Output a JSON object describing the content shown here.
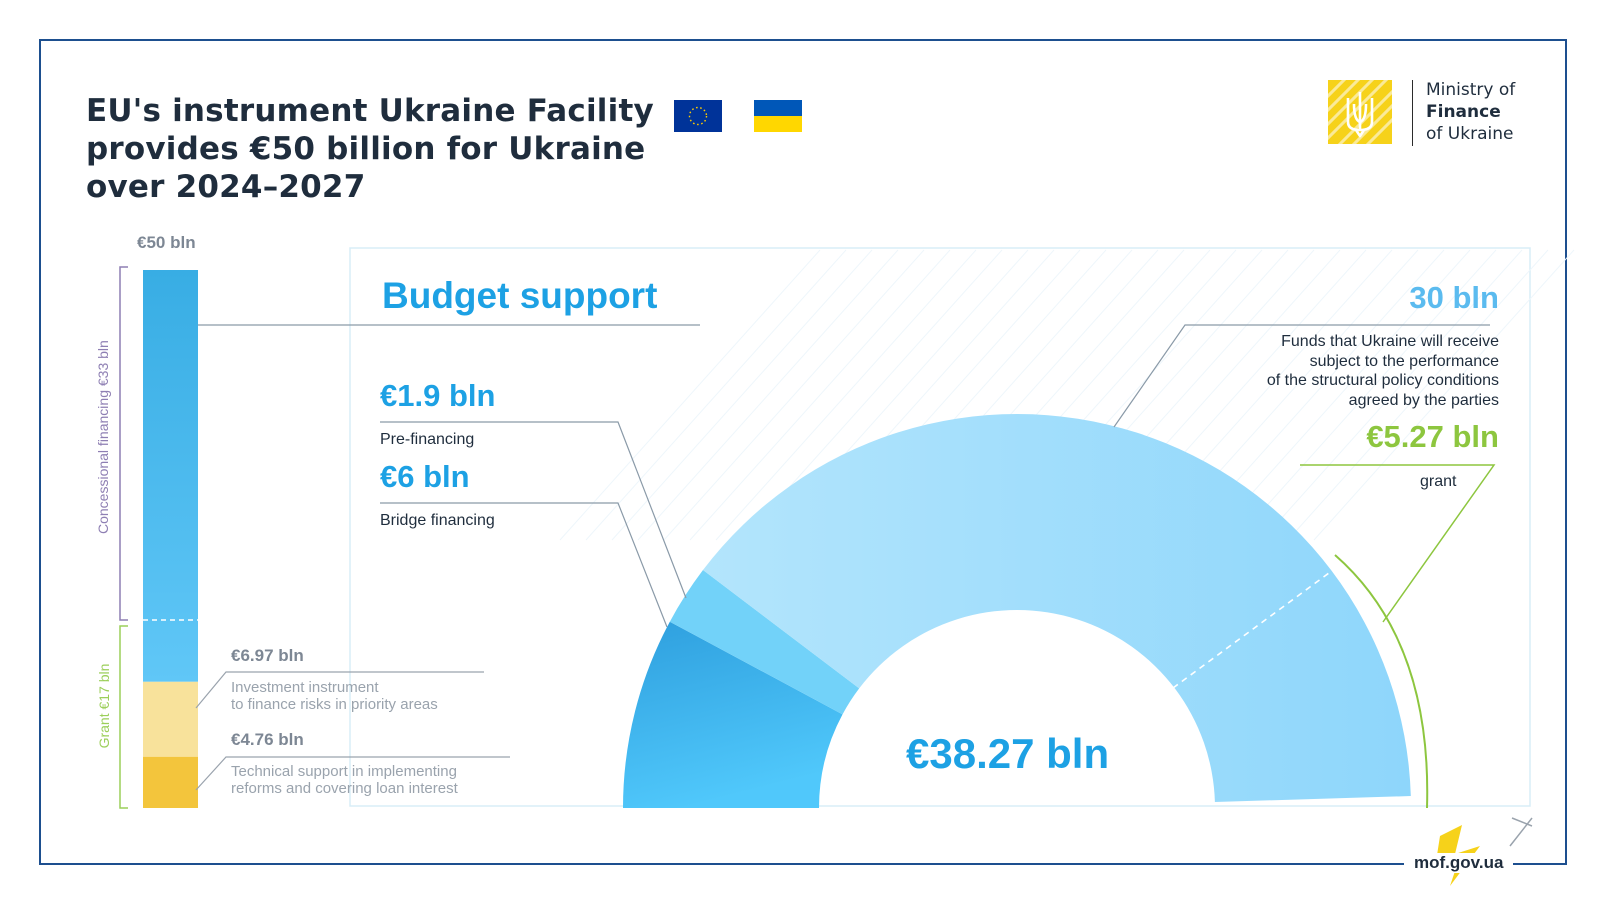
{
  "header": {
    "title_lines": [
      "EU's instrument Ukraine Facility",
      "provides €50 billion for Ukraine",
      "over 2024–2027"
    ]
  },
  "logo": {
    "icon": "trident-emblem-icon",
    "name_lines": [
      "Ministry of",
      "Finance",
      "of Ukraine"
    ]
  },
  "flags": [
    "eu-flag-icon",
    "ukraine-flag-icon"
  ],
  "footer": {
    "site": "mof.gov.ua"
  },
  "colors": {
    "accent_blue": "#1da1e4",
    "light_blue": "#5bbbef",
    "grant_green": "#8dc63f",
    "concessional_purple": "#8e7fb3",
    "yellow_light": "#f8e29b",
    "yellow_dark": "#f3c53c",
    "frame_navy": "#1d4f8f"
  },
  "chart_data": [
    {
      "type": "bar",
      "total_label": "€50 bln",
      "total": 50,
      "brackets": [
        {
          "label": "Concessional financing €33 bln",
          "value": 33
        },
        {
          "label": "Grant €17 bln",
          "value": 17
        }
      ],
      "segments": [
        {
          "name": "Budget support",
          "value": 38.27
        },
        {
          "amount": "€6.97 bln",
          "value": 6.97,
          "description": [
            "Investment instrument",
            "to finance risks in priority areas"
          ]
        },
        {
          "amount": "€4.76 bln",
          "value": 4.76,
          "description": [
            "Technical support in implementing",
            "reforms and covering loan interest"
          ]
        }
      ]
    },
    {
      "type": "pie",
      "title": "Budget support",
      "total_label": "€38.27 bln",
      "total": 38.27,
      "segments": [
        {
          "amount": "€6 bln",
          "label": "Bridge financing",
          "value": 6
        },
        {
          "amount": "€1.9 bln",
          "label": "Pre-financing",
          "value": 1.9
        },
        {
          "amount": "30 bln",
          "label": [
            "Funds that Ukraine will receive",
            "subject to the performance",
            "of the structural policy conditions",
            "agreed by the parties"
          ],
          "value": 30
        }
      ],
      "grant_portion": {
        "amount": "€5.27 bln",
        "label": "grant",
        "value": 5.27
      }
    }
  ]
}
